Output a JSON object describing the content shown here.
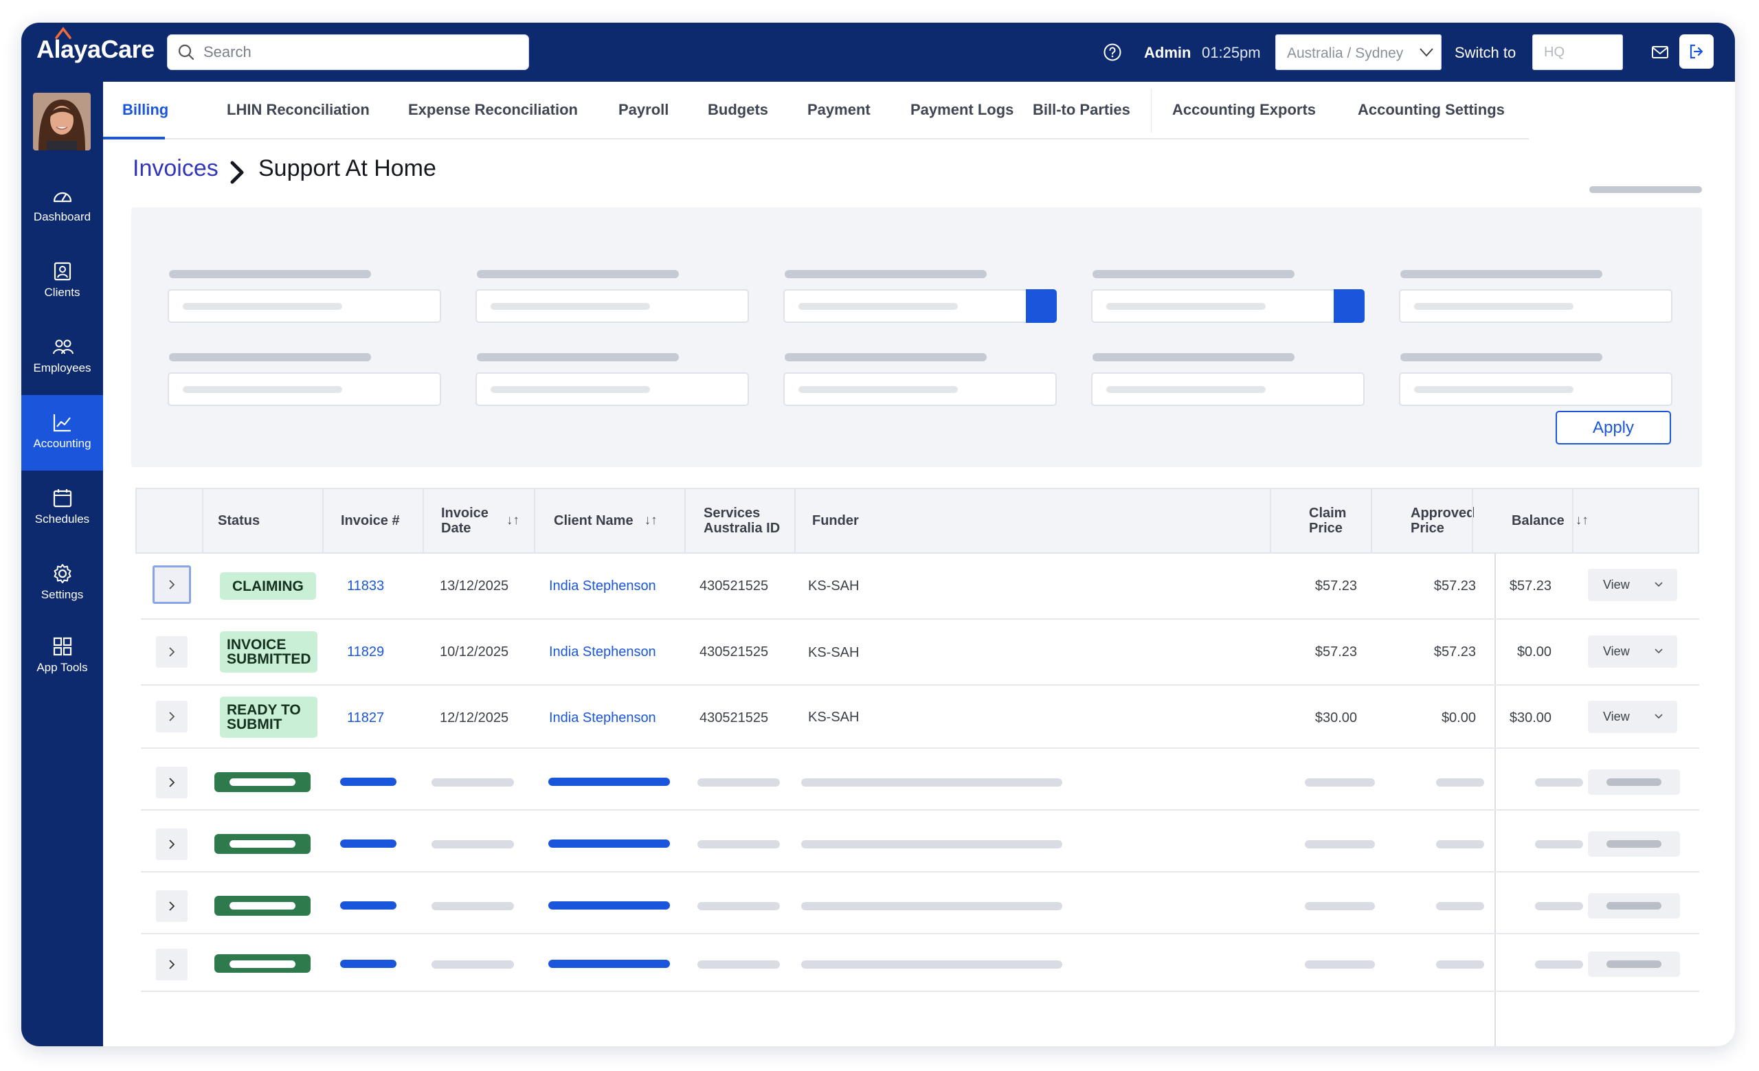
{
  "brand": {
    "name": "AlayaCare",
    "accent": "#1a56db",
    "navy": "#0d2a6f"
  },
  "topbar": {
    "search_placeholder": "Search",
    "user": "Admin",
    "time": "01:25pm",
    "region": "Australia / Sydney",
    "switch_label": "Switch to",
    "switch_placeholder": "HQ",
    "icons": [
      "help-icon",
      "mail-icon",
      "logout-icon"
    ]
  },
  "sidebar": {
    "items": [
      {
        "label": "Dashboard",
        "icon": "gauge-icon"
      },
      {
        "label": "Clients",
        "icon": "client-icon"
      },
      {
        "label": "Employees",
        "icon": "people-icon"
      },
      {
        "label": "Accounting",
        "icon": "chart-icon",
        "active": true
      },
      {
        "label": "Schedules",
        "icon": "calendar-icon"
      },
      {
        "label": "Settings",
        "icon": "gear-icon"
      },
      {
        "label": "App Tools",
        "icon": "grid-icon"
      }
    ]
  },
  "tabs": [
    "Billing",
    "LHIN Reconciliation",
    "Expense Reconciliation",
    "Payroll",
    "Budgets",
    "Payment",
    "Payment Logs",
    "Bill-to Parties",
    "Accounting Exports",
    "Accounting Settings"
  ],
  "breadcrumb": {
    "root": "Invoices",
    "page": "Support At Home"
  },
  "filters": {
    "apply_label": "Apply"
  },
  "table": {
    "headers": {
      "status": "Status",
      "invoice_no": "Invoice #",
      "invoice_date": "Invoice\nDate",
      "client_name": "Client Name",
      "services_id": "Services\nAustralia ID",
      "funder": "Funder",
      "claim_price": "Claim\nPrice",
      "approved_price": "Approved\nPrice",
      "balance": "Balance",
      "sort_icon": "↓↑"
    },
    "rows": [
      {
        "status": "CLAIMING",
        "invoice": "11833",
        "date": "13/12/2025",
        "client": "India Stephenson",
        "sa_id": "430521525",
        "funder": "KS-SAH",
        "claim": "$57.23",
        "approved": "$57.23",
        "balance": "$57.23",
        "action": "View"
      },
      {
        "status": "INVOICE SUBMITTED",
        "invoice": "11829",
        "date": "10/12/2025",
        "client": "India Stephenson",
        "sa_id": "430521525",
        "funder": "KS-SAH",
        "claim": "$57.23",
        "approved": "$57.23",
        "balance": "$0.00",
        "action": "View"
      },
      {
        "status": "READY TO SUBMIT",
        "invoice": "11827",
        "date": "12/12/2025",
        "client": "India Stephenson",
        "sa_id": "430521525",
        "funder": "KS-SAH",
        "claim": "$30.00",
        "approved": "$0.00",
        "balance": "$30.00",
        "action": "View"
      }
    ]
  }
}
